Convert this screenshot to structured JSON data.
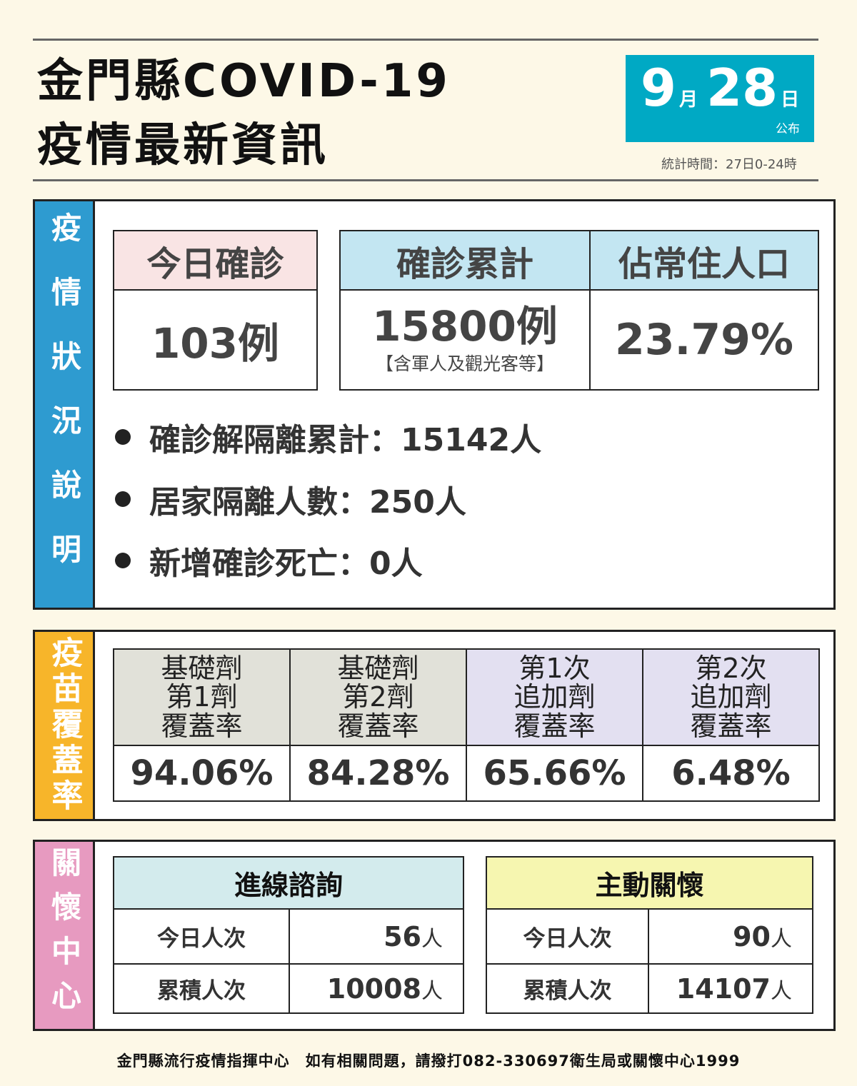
{
  "header": {
    "title_line1": "金門縣COVID-19",
    "title_line2": "疫情最新資訊",
    "date_month": "9",
    "month_unit": "月",
    "date_day": "28",
    "day_unit": "日",
    "published": "公布",
    "stat_period": "統計時間：27日0-24時"
  },
  "colors": {
    "date_bg": "#00a9c4",
    "epidemic_side": "#2e9bd0",
    "vaccine_side": "#f7b52a",
    "care_side": "#e79ac0",
    "background": "#fdf8e7"
  },
  "epidemic": {
    "side_label": "疫情狀況說明",
    "today_confirmed": {
      "label": "今日確診",
      "value": "103例"
    },
    "total_confirmed": {
      "label": "確診累計",
      "value": "15800例",
      "note": "【含軍人及觀光客等】"
    },
    "population_ratio": {
      "label": "佔常住人口",
      "value": "23.79%"
    },
    "bullets": [
      "確診解隔離累計：15142人",
      "居家隔離人數：250人",
      "新增確診死亡：0人"
    ]
  },
  "vaccine": {
    "side_label": "疫苗覆蓋率",
    "columns": [
      {
        "label": [
          "基礎劑",
          "第1劑",
          "覆蓋率"
        ],
        "value": "94.06%"
      },
      {
        "label": [
          "基礎劑",
          "第2劑",
          "覆蓋率"
        ],
        "value": "84.28%"
      },
      {
        "label": [
          "第1次",
          "追加劑",
          "覆蓋率"
        ],
        "value": "65.66%"
      },
      {
        "label": [
          "第2次",
          "追加劑",
          "覆蓋率"
        ],
        "value": "6.48%"
      }
    ]
  },
  "care": {
    "side_label": "關懷中心",
    "hotline": {
      "title": "進線諮詢",
      "rows": [
        {
          "label": "今日人次",
          "value": "56",
          "unit": "人"
        },
        {
          "label": "累積人次",
          "value": "10008",
          "unit": "人"
        }
      ]
    },
    "active": {
      "title": "主動關懷",
      "rows": [
        {
          "label": "今日人次",
          "value": "90",
          "unit": "人"
        },
        {
          "label": "累積人次",
          "value": "14107",
          "unit": "人"
        }
      ]
    }
  },
  "footer": "金門縣流行疫情指揮中心　如有相關問題，請撥打082-330697衛生局或關懷中心1999"
}
